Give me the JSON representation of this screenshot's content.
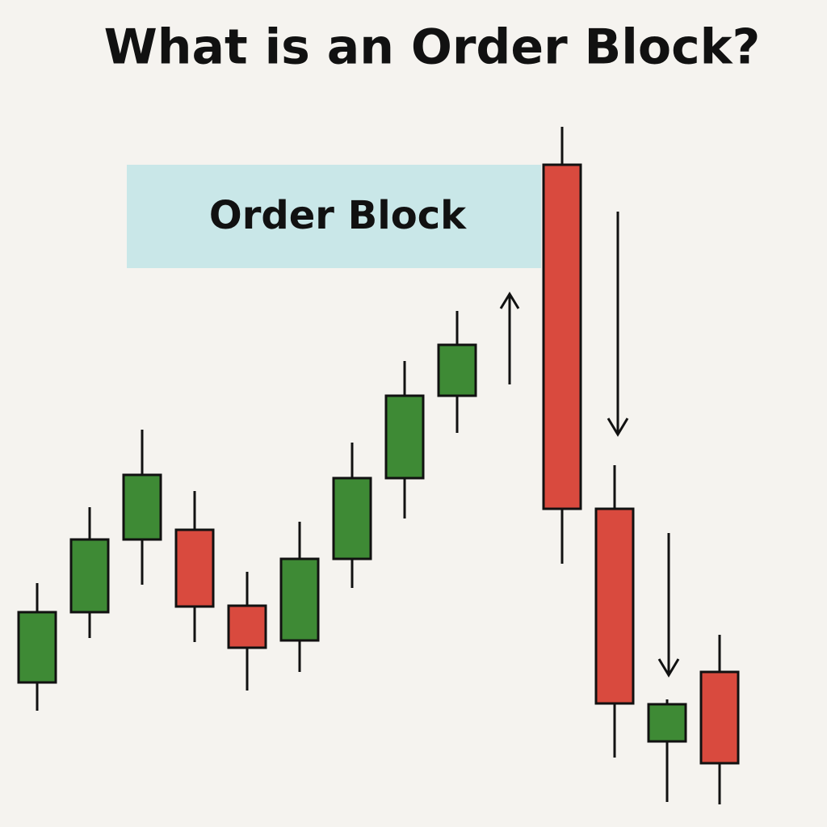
{
  "chart_data": {
    "type": "candlestick",
    "title": "What is an Order Block?",
    "categories": [
      null,
      null,
      null,
      null,
      null,
      null,
      null,
      null,
      null,
      null,
      null,
      null,
      null,
      null
    ],
    "open": [
      17.9,
      26.6,
      35.6,
      36.8,
      27.4,
      23.1,
      33.2,
      43.2,
      53.4,
      null,
      82.0,
      39.4,
      10.6,
      19.2
    ],
    "high": [
      30.2,
      39.6,
      49.2,
      41.6,
      31.6,
      37.8,
      47.6,
      57.7,
      63.9,
      null,
      86.7,
      44.8,
      15.8,
      23.8
    ],
    "low": [
      14.4,
      23.4,
      30.0,
      22.9,
      16.9,
      19.2,
      29.6,
      38.2,
      48.8,
      null,
      32.6,
      8.6,
      3.1,
      2.8
    ],
    "close": [
      26.6,
      35.6,
      43.6,
      27.3,
      22.2,
      33.2,
      43.2,
      53.4,
      59.7,
      null,
      39.4,
      15.3,
      15.2,
      7.9
    ],
    "up_color": "#3e8a35",
    "down_color": "#d94a3e",
    "ylim": [
      0,
      100
    ],
    "zone": {
      "label": "Order Block",
      "high": 82.0,
      "low": 69.2,
      "color": "#c9e7e8"
    }
  }
}
